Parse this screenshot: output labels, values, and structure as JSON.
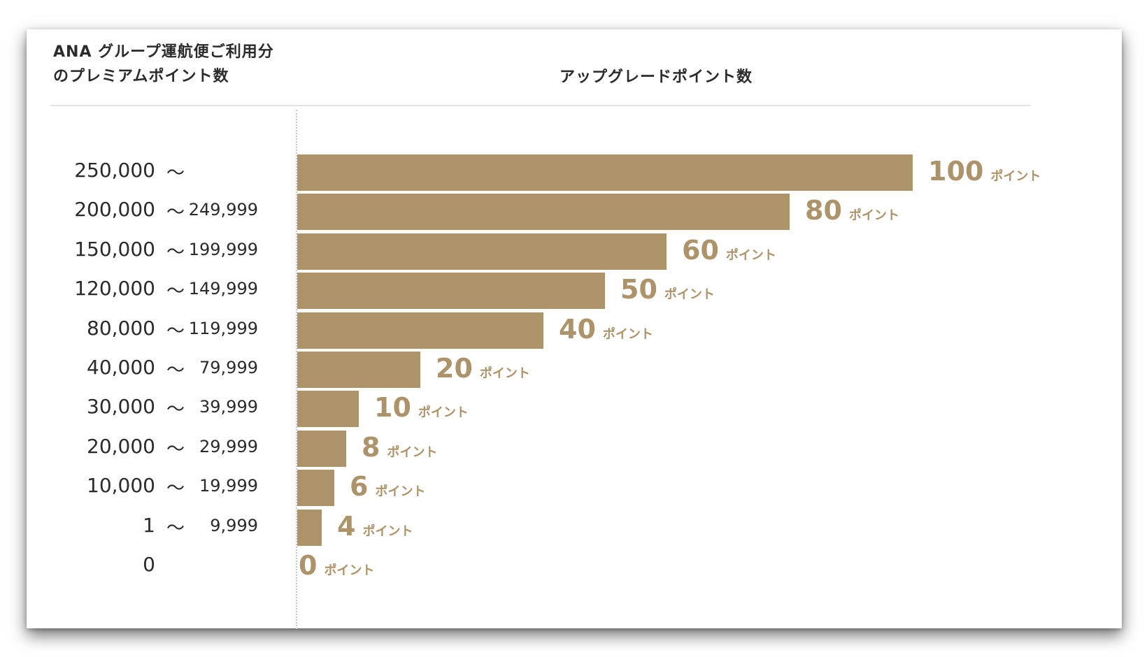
{
  "header": {
    "left_line1": "ANA グループ運航便ご利用分",
    "left_line2": "のプレミアムポイント数",
    "right": "アップグレードポイント数"
  },
  "colors": {
    "bar": "#ad9369",
    "text": "#2b2b2b"
  },
  "chart_data": {
    "type": "bar",
    "orientation": "horizontal",
    "unit": "ポイント",
    "xlim": [
      0,
      100
    ],
    "categories": [
      {
        "from": "250,000",
        "sep": "～",
        "to": ""
      },
      {
        "from": "200,000",
        "sep": "～",
        "to": "249,999"
      },
      {
        "from": "150,000",
        "sep": "～",
        "to": "199,999"
      },
      {
        "from": "120,000",
        "sep": "～",
        "to": "149,999"
      },
      {
        "from": "80,000",
        "sep": "～",
        "to": "119,999"
      },
      {
        "from": "40,000",
        "sep": "～",
        "to": "79,999"
      },
      {
        "from": "30,000",
        "sep": "～",
        "to": "39,999"
      },
      {
        "from": "20,000",
        "sep": "～",
        "to": "29,999"
      },
      {
        "from": "10,000",
        "sep": "～",
        "to": "19,999"
      },
      {
        "from": "1",
        "sep": "～",
        "to": "9,999"
      },
      {
        "from": "0",
        "sep": "",
        "to": ""
      }
    ],
    "values": [
      100,
      80,
      60,
      50,
      40,
      20,
      10,
      8,
      6,
      4,
      0
    ]
  }
}
